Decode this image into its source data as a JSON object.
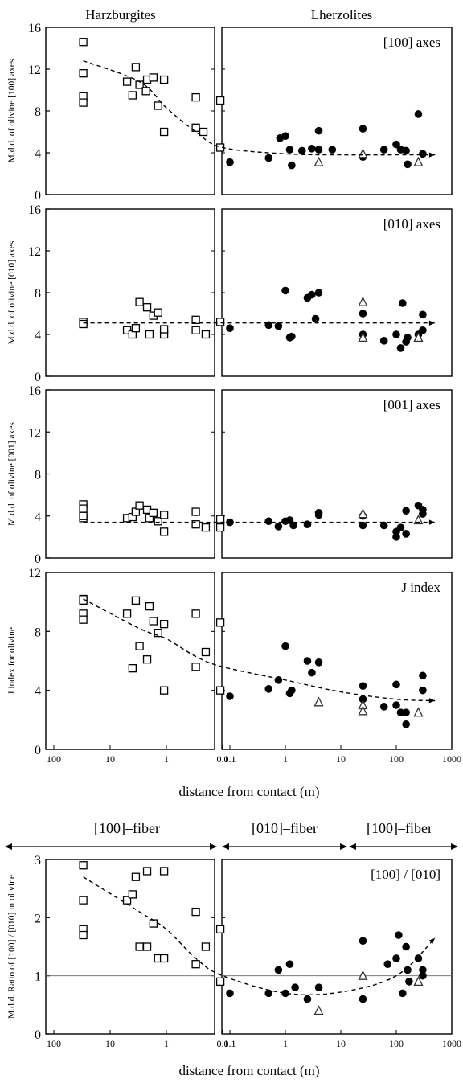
{
  "headers": {
    "left": "Harzburgites",
    "right": "Lherzolites"
  },
  "xaxis": {
    "left_ticks": [
      "100",
      "10",
      "1",
      "0.1"
    ],
    "right_ticks": [
      "0.1",
      "1",
      "10",
      "100",
      "1000"
    ],
    "label": "distance from contact (m)"
  },
  "fiber_labels": {
    "left": "[100]–fiber",
    "middle": "[010]–fiber",
    "right": "[100]–fiber"
  },
  "chart_data": [
    {
      "type": "scatter",
      "panel_label": "[100] axes",
      "ylabel": "M.d.d. of olivine [100]  axes",
      "ylim": [
        0,
        16
      ],
      "yticks": [
        "0",
        "4",
        "8",
        "12",
        "16"
      ],
      "series": [
        {
          "marker": "open-square",
          "side": "left",
          "points": [
            [
              30,
              14.6
            ],
            [
              30,
              11.6
            ],
            [
              30,
              9.4
            ],
            [
              30,
              8.8
            ],
            [
              5,
              10.8
            ],
            [
              4,
              9.5
            ],
            [
              3.5,
              12.2
            ],
            [
              3,
              10.5
            ],
            [
              2.2,
              11
            ],
            [
              2.3,
              9.9
            ],
            [
              1.7,
              11.2
            ],
            [
              1.4,
              8.5
            ],
            [
              1.1,
              6
            ],
            [
              1.1,
              11
            ],
            [
              0.3,
              9.3
            ],
            [
              0.3,
              6.4
            ],
            [
              0.22,
              6
            ],
            [
              0.11,
              9
            ],
            [
              0.11,
              4.5
            ]
          ]
        },
        {
          "marker": "filled-circle",
          "side": "right",
          "points": [
            [
              0.1,
              3.1
            ],
            [
              0.5,
              3.5
            ],
            [
              0.8,
              5.4
            ],
            [
              1,
              5.6
            ],
            [
              1.2,
              4.3
            ],
            [
              1.3,
              2.8
            ],
            [
              2,
              4.2
            ],
            [
              3,
              4.4
            ],
            [
              4,
              6.1
            ],
            [
              4,
              4.3
            ],
            [
              7,
              4.3
            ],
            [
              25,
              6.3
            ],
            [
              25,
              3.6
            ],
            [
              60,
              4.3
            ],
            [
              100,
              4.8
            ],
            [
              120,
              4.3
            ],
            [
              150,
              4.2
            ],
            [
              160,
              2.9
            ],
            [
              250,
              7.7
            ],
            [
              300,
              3.9
            ]
          ]
        },
        {
          "marker": "open-triangle",
          "side": "right",
          "points": [
            [
              4,
              3.1
            ],
            [
              25,
              3.9
            ],
            [
              250,
              3.1
            ]
          ]
        }
      ],
      "trend": [
        [
          30,
          12.8
        ],
        [
          3,
          10.8
        ],
        [
          1,
          8.3
        ],
        [
          0.3,
          6
        ],
        [
          0.1,
          4.5
        ],
        [
          1,
          3.9
        ],
        [
          10,
          3.8
        ],
        [
          100,
          3.8
        ],
        [
          500,
          3.8
        ]
      ]
    },
    {
      "type": "scatter",
      "panel_label": "[010] axes",
      "ylabel": "M.d.d. of olivine [010]  axes",
      "ylim": [
        0,
        16
      ],
      "yticks": [
        "0",
        "4",
        "8",
        "12",
        "16"
      ],
      "series": [
        {
          "marker": "open-square",
          "side": "left",
          "points": [
            [
              30,
              5.2
            ],
            [
              30,
              5
            ],
            [
              5,
              4.4
            ],
            [
              4,
              4
            ],
            [
              3.5,
              4.6
            ],
            [
              3,
              7.1
            ],
            [
              2.2,
              6.6
            ],
            [
              2,
              4
            ],
            [
              1.7,
              5.8
            ],
            [
              1.4,
              6.1
            ],
            [
              1.1,
              4
            ],
            [
              1.1,
              4.5
            ],
            [
              0.3,
              5.4
            ],
            [
              0.3,
              4.4
            ],
            [
              0.2,
              4
            ],
            [
              0.11,
              5.2
            ]
          ]
        },
        {
          "marker": "filled-circle",
          "side": "right",
          "points": [
            [
              0.1,
              4.6
            ],
            [
              0.5,
              4.9
            ],
            [
              0.75,
              4.8
            ],
            [
              1,
              8.2
            ],
            [
              1.2,
              3.7
            ],
            [
              1.3,
              3.8
            ],
            [
              2.5,
              7.5
            ],
            [
              3,
              7.8
            ],
            [
              3.5,
              5.5
            ],
            [
              4,
              8
            ],
            [
              25,
              6
            ],
            [
              25,
              4
            ],
            [
              60,
              3.4
            ],
            [
              100,
              4
            ],
            [
              120,
              2.7
            ],
            [
              130,
              7
            ],
            [
              150,
              3.3
            ],
            [
              160,
              3.7
            ],
            [
              250,
              4
            ],
            [
              300,
              4.4
            ],
            [
              300,
              5.9
            ]
          ]
        },
        {
          "marker": "open-triangle",
          "side": "right",
          "points": [
            [
              25,
              7.1
            ],
            [
              25,
              3.7
            ],
            [
              250,
              3.7
            ]
          ]
        }
      ],
      "trend": [
        [
          30,
          5.1
        ],
        [
          1,
          5.1
        ],
        [
          0.1,
          5.1
        ],
        [
          1,
          5.1
        ],
        [
          10,
          5.1
        ],
        [
          100,
          5.1
        ],
        [
          500,
          5.1
        ]
      ]
    },
    {
      "type": "scatter",
      "panel_label": "[001] axes",
      "ylabel": "M.d.d. of olivine [001]  axes",
      "ylim": [
        0,
        16
      ],
      "yticks": [
        "0",
        "4",
        "8",
        "12",
        "16"
      ],
      "series": [
        {
          "marker": "open-square",
          "side": "left",
          "points": [
            [
              30,
              5.1
            ],
            [
              30,
              4.7
            ],
            [
              30,
              3.8
            ],
            [
              30,
              4
            ],
            [
              5,
              3.8
            ],
            [
              4,
              3.9
            ],
            [
              3.5,
              4.4
            ],
            [
              3,
              5
            ],
            [
              2.2,
              4.6
            ],
            [
              2,
              3.8
            ],
            [
              1.7,
              4.3
            ],
            [
              1.4,
              3.5
            ],
            [
              1.1,
              4.1
            ],
            [
              1.1,
              2.5
            ],
            [
              0.3,
              4.4
            ],
            [
              0.3,
              3.2
            ],
            [
              0.2,
              2.9
            ],
            [
              0.11,
              3.7
            ],
            [
              0.11,
              2.9
            ]
          ]
        },
        {
          "marker": "filled-circle",
          "side": "right",
          "points": [
            [
              0.1,
              3.4
            ],
            [
              0.5,
              3.5
            ],
            [
              0.75,
              3
            ],
            [
              1,
              3.5
            ],
            [
              1.2,
              3.6
            ],
            [
              1.4,
              3.1
            ],
            [
              2.5,
              3.2
            ],
            [
              4,
              4.1
            ],
            [
              4,
              4.3
            ],
            [
              25,
              4
            ],
            [
              25,
              3.1
            ],
            [
              60,
              3.1
            ],
            [
              100,
              2
            ],
            [
              100,
              2.5
            ],
            [
              120,
              2.9
            ],
            [
              150,
              2.3
            ],
            [
              150,
              4.5
            ],
            [
              250,
              5
            ],
            [
              300,
              4.6
            ],
            [
              300,
              4.2
            ]
          ]
        },
        {
          "marker": "open-triangle",
          "side": "right",
          "points": [
            [
              25,
              4.2
            ],
            [
              250,
              3.6
            ]
          ]
        }
      ],
      "trend": [
        [
          30,
          3.4
        ],
        [
          1,
          3.4
        ],
        [
          0.1,
          3.4
        ],
        [
          1,
          3.4
        ],
        [
          10,
          3.4
        ],
        [
          100,
          3.4
        ],
        [
          500,
          3.4
        ]
      ]
    },
    {
      "type": "scatter",
      "panel_label": "J index",
      "ylabel": "J index for olivine",
      "ylim": [
        0,
        12
      ],
      "yticks": [
        "0",
        "4",
        "8",
        "12"
      ],
      "series": [
        {
          "marker": "open-square",
          "side": "left",
          "points": [
            [
              30,
              10.2
            ],
            [
              30,
              10.1
            ],
            [
              30,
              9.2
            ],
            [
              30,
              8.8
            ],
            [
              5,
              9.2
            ],
            [
              4,
              5.5
            ],
            [
              3.5,
              10.1
            ],
            [
              3,
              7
            ],
            [
              2.2,
              6.1
            ],
            [
              2,
              9.7
            ],
            [
              1.7,
              8.7
            ],
            [
              1.4,
              7.9
            ],
            [
              1.1,
              8.5
            ],
            [
              1.1,
              4
            ],
            [
              0.3,
              9.2
            ],
            [
              0.3,
              5.6
            ],
            [
              0.2,
              6.6
            ],
            [
              0.11,
              8.6
            ],
            [
              0.11,
              4
            ]
          ]
        },
        {
          "marker": "filled-circle",
          "side": "right",
          "points": [
            [
              0.1,
              3.6
            ],
            [
              0.5,
              4.1
            ],
            [
              0.75,
              4.7
            ],
            [
              1,
              7
            ],
            [
              1.2,
              3.8
            ],
            [
              1.3,
              4
            ],
            [
              2.5,
              6
            ],
            [
              3,
              5.2
            ],
            [
              4,
              5.9
            ],
            [
              25,
              4.3
            ],
            [
              25,
              3.4
            ],
            [
              60,
              2.9
            ],
            [
              100,
              4.4
            ],
            [
              100,
              3
            ],
            [
              120,
              2.5
            ],
            [
              150,
              2.5
            ],
            [
              150,
              1.7
            ],
            [
              300,
              5
            ],
            [
              300,
              4
            ]
          ]
        },
        {
          "marker": "open-triangle",
          "side": "right",
          "points": [
            [
              4,
              3.2
            ],
            [
              25,
              3
            ],
            [
              25,
              2.6
            ],
            [
              250,
              2.5
            ]
          ]
        }
      ],
      "trend": [
        [
          30,
          10.2
        ],
        [
          3,
          8.2
        ],
        [
          1,
          7.5
        ],
        [
          0.3,
          6.3
        ],
        [
          0.1,
          5.6
        ],
        [
          1,
          4.7
        ],
        [
          10,
          3.9
        ],
        [
          100,
          3.4
        ],
        [
          500,
          3.3
        ]
      ]
    },
    {
      "type": "scatter",
      "panel_label": "[100] / [010]",
      "ylabel": "M.d.d. Ratio of [100] / [010] in olivine",
      "ylim": [
        0,
        3
      ],
      "yticks": [
        "0",
        "1",
        "2",
        "3"
      ],
      "reference_line": 1,
      "series": [
        {
          "marker": "open-square",
          "side": "left",
          "points": [
            [
              30,
              2.9
            ],
            [
              30,
              2.3
            ],
            [
              30,
              1.8
            ],
            [
              30,
              1.7
            ],
            [
              5,
              2.3
            ],
            [
              4,
              2.4
            ],
            [
              3.5,
              2.7
            ],
            [
              3,
              1.5
            ],
            [
              2.2,
              2.8
            ],
            [
              2.2,
              1.5
            ],
            [
              1.7,
              1.9
            ],
            [
              1.4,
              1.3
            ],
            [
              1.1,
              2.8
            ],
            [
              1.1,
              1.3
            ],
            [
              0.3,
              2.1
            ],
            [
              0.3,
              1.2
            ],
            [
              0.2,
              1.5
            ],
            [
              0.11,
              1.8
            ],
            [
              0.11,
              0.9
            ]
          ]
        },
        {
          "marker": "filled-circle",
          "side": "right",
          "points": [
            [
              0.1,
              0.7
            ],
            [
              0.5,
              0.7
            ],
            [
              0.75,
              1.1
            ],
            [
              1,
              0.7
            ],
            [
              1.2,
              1.2
            ],
            [
              1.5,
              0.8
            ],
            [
              2.5,
              0.6
            ],
            [
              4,
              0.8
            ],
            [
              25,
              1.6
            ],
            [
              25,
              0.6
            ],
            [
              70,
              1.2
            ],
            [
              100,
              1.3
            ],
            [
              110,
              1.7
            ],
            [
              130,
              0.7
            ],
            [
              150,
              1.5
            ],
            [
              160,
              1.1
            ],
            [
              170,
              0.9
            ],
            [
              250,
              1.3
            ],
            [
              300,
              1.1
            ],
            [
              300,
              1
            ]
          ]
        },
        {
          "marker": "open-triangle",
          "side": "right",
          "points": [
            [
              4,
              0.4
            ],
            [
              25,
              1
            ],
            [
              250,
              0.9
            ]
          ]
        }
      ],
      "trend": [
        [
          30,
          2.7
        ],
        [
          3,
          2.1
        ],
        [
          1,
          1.8
        ],
        [
          0.3,
          1.3
        ],
        [
          0.1,
          1.0
        ],
        [
          1,
          0.7
        ],
        [
          10,
          0.72
        ],
        [
          100,
          1.0
        ],
        [
          500,
          1.65
        ]
      ]
    }
  ]
}
